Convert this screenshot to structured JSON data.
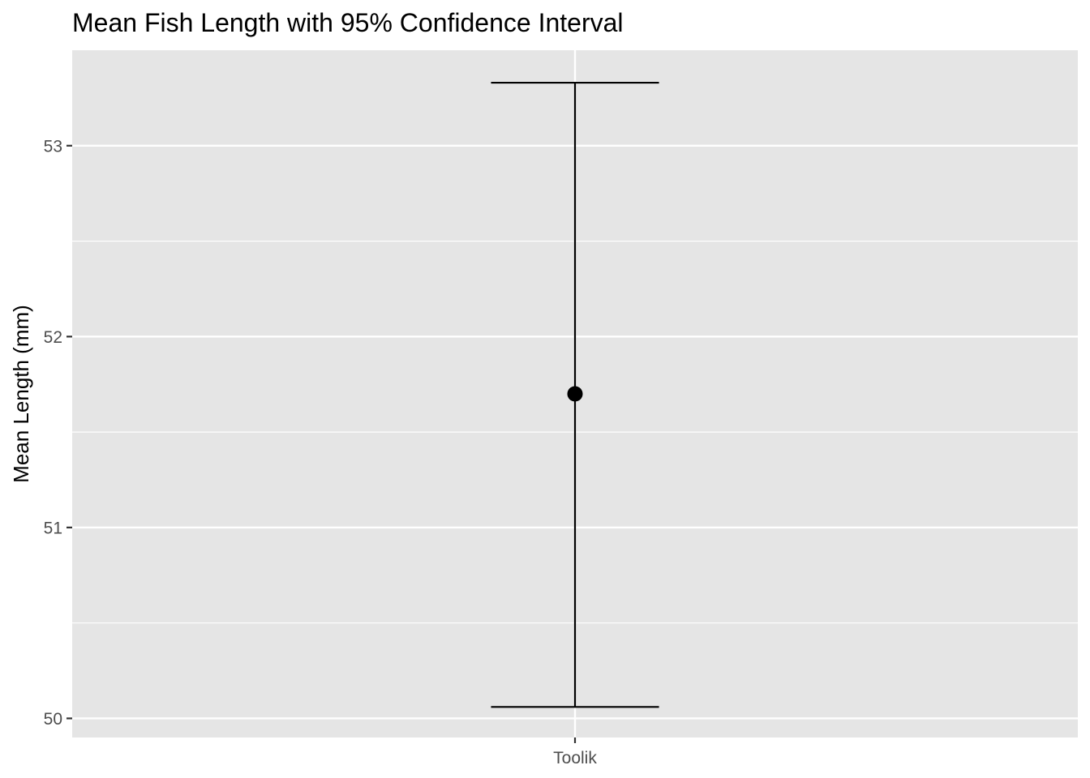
{
  "chart_data": {
    "type": "errorbar",
    "title": "Mean Fish Length with 95% Confidence Interval",
    "xlabel": "",
    "ylabel": "Mean Length (mm)",
    "categories": [
      "Toolik"
    ],
    "points": [
      {
        "category": "Toolik",
        "mean": 51.7,
        "lower": 50.06,
        "upper": 53.33
      }
    ],
    "yticks": [
      50,
      51,
      52,
      53
    ],
    "ylim": [
      49.9,
      53.5
    ],
    "grid": true,
    "legend": "none",
    "colors": {
      "panel": "#e5e5e5",
      "grid": "#ffffff",
      "mark": "#000000",
      "tick_text": "#4d4d4d"
    }
  }
}
